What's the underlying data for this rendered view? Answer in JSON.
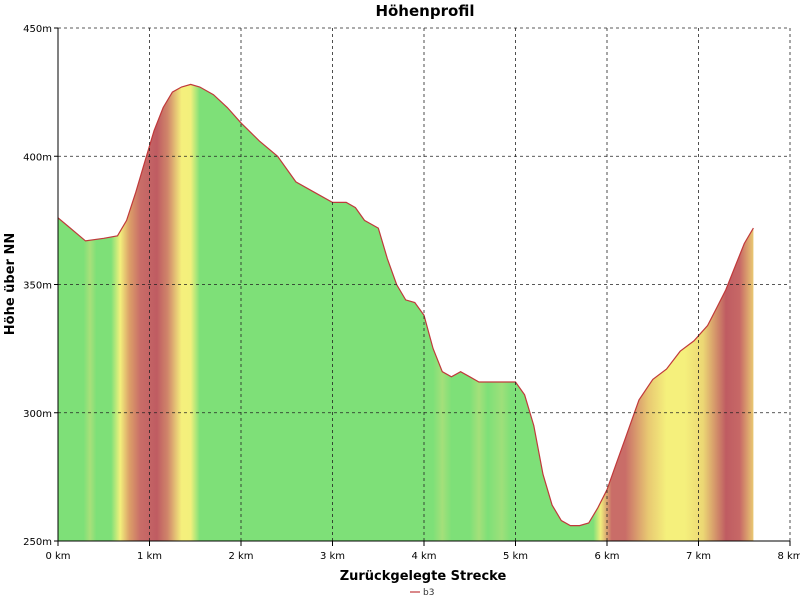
{
  "chart_data": {
    "type": "area",
    "title": "Höhenprofil",
    "xlabel": "Zurückgelegte Strecke",
    "ylabel": "Höhe über NN",
    "xlim": [
      0,
      8
    ],
    "ylim": [
      250,
      450
    ],
    "x_ticks": [
      0,
      1,
      2,
      3,
      4,
      5,
      6,
      7,
      8
    ],
    "x_tick_labels": [
      "0 km",
      "1 km",
      "2 km",
      "3 km",
      "4 km",
      "5 km",
      "6 km",
      "7 km",
      "8 km"
    ],
    "y_ticks": [
      250,
      300,
      350,
      400,
      450
    ],
    "y_tick_labels": [
      "250m",
      "300m",
      "350m",
      "400m",
      "450m"
    ],
    "grid": true,
    "legend_position": "bottom-center",
    "series": [
      {
        "name": "b3",
        "line_color": "#c0393b",
        "x": [
          0,
          0.1,
          0.3,
          0.5,
          0.65,
          0.75,
          0.85,
          0.95,
          1.05,
          1.15,
          1.25,
          1.35,
          1.45,
          1.55,
          1.7,
          1.85,
          2.0,
          2.2,
          2.4,
          2.6,
          2.8,
          3.0,
          3.15,
          3.25,
          3.35,
          3.5,
          3.6,
          3.7,
          3.8,
          3.9,
          4.0,
          4.1,
          4.2,
          4.3,
          4.4,
          4.5,
          4.6,
          4.7,
          4.85,
          5.0,
          5.1,
          5.2,
          5.3,
          5.4,
          5.5,
          5.6,
          5.7,
          5.8,
          5.9,
          6.0,
          6.1,
          6.2,
          6.35,
          6.5,
          6.65,
          6.8,
          6.95,
          7.1,
          7.2,
          7.3,
          7.4,
          7.5,
          7.6
        ],
        "y": [
          376,
          373,
          367,
          368,
          369,
          375,
          386,
          398,
          410,
          419,
          425,
          427,
          428,
          427,
          424,
          419,
          413,
          406,
          400,
          390,
          386,
          382,
          382,
          380,
          375,
          372,
          360,
          350,
          344,
          343,
          338,
          325,
          316,
          314,
          316,
          314,
          312,
          312,
          312,
          312,
          307,
          295,
          276,
          264,
          258,
          256,
          256,
          257,
          263,
          270,
          280,
          290,
          305,
          313,
          317,
          324,
          328,
          334,
          341,
          348,
          357,
          366,
          372
        ]
      }
    ],
    "gradient_bands": [
      {
        "x": 0.0,
        "color": "#7ee078"
      },
      {
        "x": 0.28,
        "color": "#7ee078"
      },
      {
        "x": 0.35,
        "color": "#a8e07a"
      },
      {
        "x": 0.42,
        "color": "#7ee078"
      },
      {
        "x": 0.58,
        "color": "#7ee078"
      },
      {
        "x": 0.68,
        "color": "#f2f07c"
      },
      {
        "x": 0.78,
        "color": "#dca068"
      },
      {
        "x": 0.9,
        "color": "#c96d68"
      },
      {
        "x": 1.08,
        "color": "#bf5c62"
      },
      {
        "x": 1.2,
        "color": "#d0866a"
      },
      {
        "x": 1.35,
        "color": "#f5f07c"
      },
      {
        "x": 1.45,
        "color": "#f2f07c"
      },
      {
        "x": 1.55,
        "color": "#7ee078"
      },
      {
        "x": 4.1,
        "color": "#7ee078"
      },
      {
        "x": 4.2,
        "color": "#a4e07a"
      },
      {
        "x": 4.3,
        "color": "#7ee078"
      },
      {
        "x": 4.5,
        "color": "#7ee078"
      },
      {
        "x": 4.6,
        "color": "#a4e07a"
      },
      {
        "x": 4.7,
        "color": "#7ee078"
      },
      {
        "x": 4.85,
        "color": "#9ee07a"
      },
      {
        "x": 4.95,
        "color": "#7ee078"
      },
      {
        "x": 5.85,
        "color": "#7ee078"
      },
      {
        "x": 5.93,
        "color": "#f0ee7c"
      },
      {
        "x": 6.05,
        "color": "#c96d68"
      },
      {
        "x": 6.2,
        "color": "#c96d68"
      },
      {
        "x": 6.45,
        "color": "#e8c872"
      },
      {
        "x": 6.65,
        "color": "#f5f07c"
      },
      {
        "x": 6.85,
        "color": "#f5f07c"
      },
      {
        "x": 7.05,
        "color": "#ecd774"
      },
      {
        "x": 7.3,
        "color": "#bf5c62"
      },
      {
        "x": 7.45,
        "color": "#c76866"
      },
      {
        "x": 7.6,
        "color": "#e9c872"
      }
    ]
  }
}
